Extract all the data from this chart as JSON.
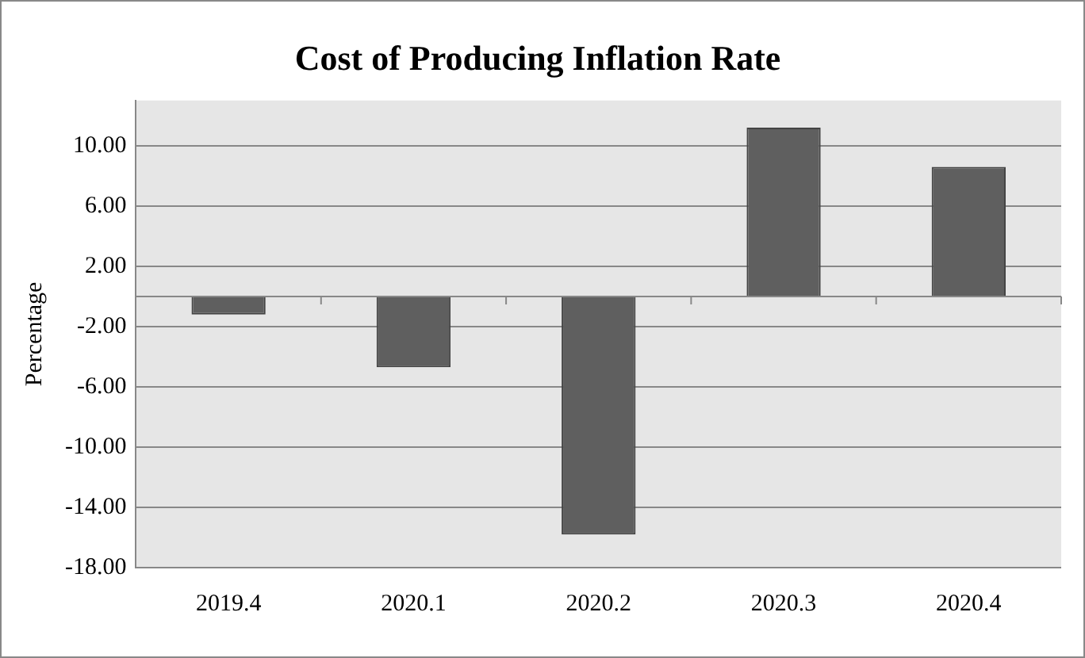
{
  "chart_data": {
    "type": "bar",
    "title": "Cost of Producing Inflation Rate",
    "ylabel": "Percentage",
    "categories": [
      "2019.4",
      "2020.1",
      "2020.2",
      "2020.3",
      "2020.4"
    ],
    "values": [
      -1.2,
      -4.7,
      -15.8,
      11.2,
      8.6
    ],
    "color": "#5f5f5f",
    "ylim": [
      -18,
      13
    ],
    "yticks": [
      {
        "value": -18,
        "label": "-18.00"
      },
      {
        "value": -14,
        "label": "-14.00"
      },
      {
        "value": -10,
        "label": "-10.00"
      },
      {
        "value": -6,
        "label": "-6.00"
      },
      {
        "value": -2,
        "label": "-2.00"
      },
      {
        "value": 2,
        "label": "2.00"
      },
      {
        "value": 6,
        "label": "6.00"
      },
      {
        "value": 10,
        "label": "10.00"
      }
    ],
    "grid": "y",
    "legend": false
  }
}
